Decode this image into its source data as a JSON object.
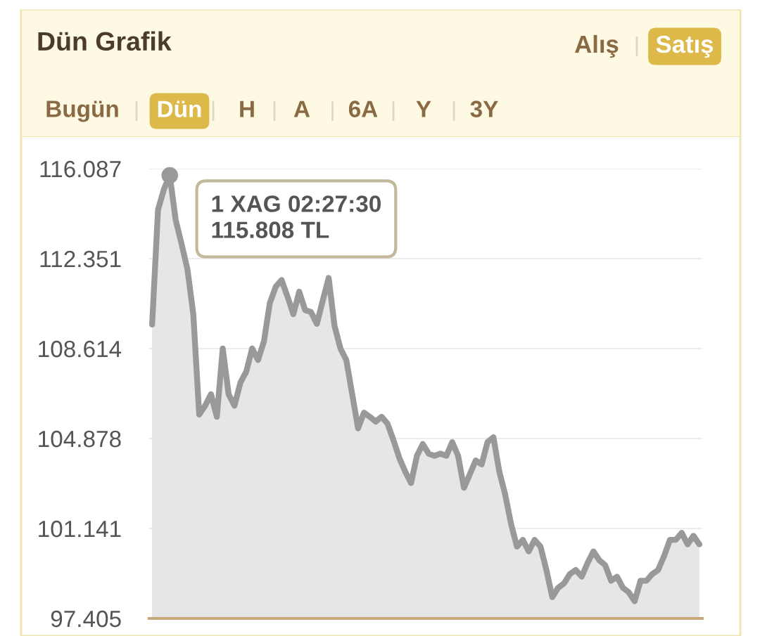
{
  "chart_data": {
    "type": "area",
    "title": "Dün Grafik",
    "categories": [
      null,
      null,
      null,
      null,
      null,
      null,
      null,
      null,
      null,
      null,
      null,
      null,
      null,
      null,
      null,
      null,
      null,
      null,
      null,
      null,
      null,
      null,
      null,
      null,
      null,
      null,
      null,
      null,
      null,
      null,
      null,
      null,
      null,
      null,
      null,
      null,
      null,
      null,
      null,
      null,
      null,
      null,
      null,
      null,
      null,
      null,
      null,
      null,
      null,
      null,
      null,
      null,
      null,
      null,
      null,
      null,
      null,
      null,
      null,
      null,
      null,
      null,
      null,
      null,
      null,
      null,
      null,
      null,
      null,
      null,
      null,
      null,
      null,
      null,
      null,
      null,
      null,
      null,
      null,
      null,
      null,
      null,
      null,
      null,
      null,
      null,
      null,
      null,
      null,
      null,
      null,
      null,
      null,
      null
    ],
    "series": [
      {
        "color": "#999999",
        "values": [
          109.61,
          114.38,
          115.23,
          115.808,
          113.96,
          112.96,
          111.91,
          110.04,
          105.87,
          106.24,
          106.72,
          105.78,
          108.62,
          106.72,
          106.24,
          107.2,
          107.66,
          108.62,
          108.14,
          108.91,
          110.5,
          111.18,
          111.46,
          110.78,
          110.04,
          110.98,
          110.21,
          110.13,
          109.64,
          110.61,
          111.55,
          109.56,
          108.62,
          108.14,
          106.72,
          105.3,
          105.95,
          105.78,
          105.58,
          105.78,
          105.5,
          104.82,
          104.08,
          103.51,
          103.03,
          104.16,
          104.65,
          104.25,
          104.16,
          104.25,
          104.16,
          104.73,
          104.16,
          102.83,
          103.4,
          103.97,
          103.8,
          104.73,
          104.93,
          103.51,
          102.55,
          101.33,
          100.39,
          100.67,
          100.19,
          100.67,
          100.39,
          99.42,
          98.29,
          98.68,
          98.86,
          99.25,
          99.42,
          99.14,
          99.71,
          100.19,
          99.82,
          99.62,
          98.97,
          99.14,
          98.68,
          98.49,
          98.12,
          98.97,
          98.97,
          99.25,
          99.42,
          99.99,
          100.67,
          100.67,
          100.96,
          100.48,
          100.84,
          100.48
        ]
      }
    ],
    "ylim": [
      97.405,
      116.087
    ],
    "yticks": [
      {
        "value": 97.405,
        "label": "97.405"
      },
      {
        "value": 101.141,
        "label": "101.141"
      },
      {
        "value": 104.878,
        "label": "104.878"
      },
      {
        "value": 108.614,
        "label": "108.614"
      },
      {
        "value": 112.351,
        "label": "112.351"
      },
      {
        "value": 116.087,
        "label": "116.087"
      }
    ],
    "grid": "y",
    "tick_labels": "y",
    "annotations": [
      "1 XAG 02:27:30\n115.808 TL",
      "Alış",
      "Satış",
      "Bugün",
      "Dün",
      "H",
      "A",
      "6A",
      "Y",
      "3Y"
    ]
  }
}
